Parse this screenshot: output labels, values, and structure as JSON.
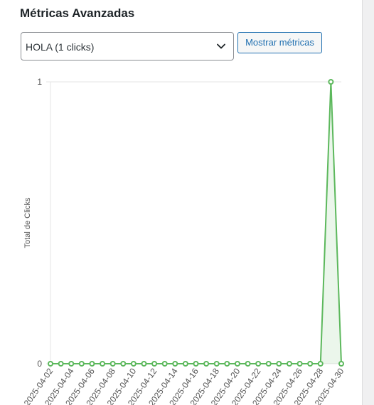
{
  "widget": {
    "title": "Métricas Avanzadas",
    "select_value": "HOLA (1 clicks)",
    "button_label": "Mostrar métricas"
  },
  "colors": {
    "accent": "#2271b1",
    "line": "#5cb85c",
    "fill": "rgba(92,184,92,0.12)"
  },
  "chart_data": {
    "type": "area",
    "title": "",
    "xlabel": "",
    "ylabel": "Total de Clicks",
    "ylim": [
      0,
      1
    ],
    "y_ticks": [
      "0",
      "1"
    ],
    "x": [
      "2025-04-02",
      "2025-04-03",
      "2025-04-04",
      "2025-04-05",
      "2025-04-06",
      "2025-04-07",
      "2025-04-08",
      "2025-04-09",
      "2025-04-10",
      "2025-04-11",
      "2025-04-12",
      "2025-04-13",
      "2025-04-14",
      "2025-04-15",
      "2025-04-16",
      "2025-04-17",
      "2025-04-18",
      "2025-04-19",
      "2025-04-20",
      "2025-04-21",
      "2025-04-22",
      "2025-04-23",
      "2025-04-24",
      "2025-04-25",
      "2025-04-26",
      "2025-04-27",
      "2025-04-28",
      "2025-04-29",
      "2025-04-30"
    ],
    "x_tick_labels": [
      "2025-04-02",
      "2025-04-04",
      "2025-04-06",
      "2025-04-08",
      "2025-04-10",
      "2025-04-12",
      "2025-04-14",
      "2025-04-16",
      "2025-04-18",
      "2025-04-20",
      "2025-04-22",
      "2025-04-24",
      "2025-04-26",
      "2025-04-28",
      "2025-04-30"
    ],
    "series": [
      {
        "values": [
          0,
          0,
          0,
          0,
          0,
          0,
          0,
          0,
          0,
          0,
          0,
          0,
          0,
          0,
          0,
          0,
          0,
          0,
          0,
          0,
          0,
          0,
          0,
          0,
          0,
          0,
          0,
          1,
          0
        ]
      }
    ]
  }
}
